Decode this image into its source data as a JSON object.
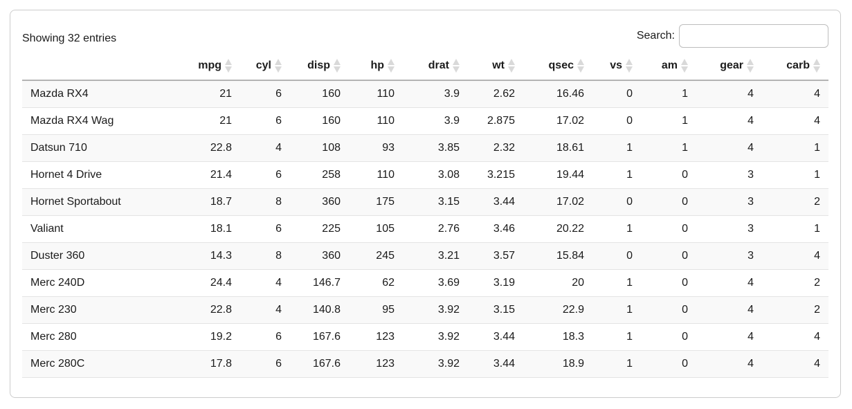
{
  "card": {
    "info_text": "Showing 32 entries",
    "search": {
      "label": "Search:",
      "value": "",
      "placeholder": ""
    }
  },
  "table": {
    "row_header_label": "",
    "columns": [
      "mpg",
      "cyl",
      "disp",
      "hp",
      "drat",
      "wt",
      "qsec",
      "vs",
      "am",
      "gear",
      "carb"
    ],
    "rows": [
      {
        "name": "Mazda RX4",
        "values": [
          "21",
          "6",
          "160",
          "110",
          "3.9",
          "2.62",
          "16.46",
          "0",
          "1",
          "4",
          "4"
        ]
      },
      {
        "name": "Mazda RX4 Wag",
        "values": [
          "21",
          "6",
          "160",
          "110",
          "3.9",
          "2.875",
          "17.02",
          "0",
          "1",
          "4",
          "4"
        ]
      },
      {
        "name": "Datsun 710",
        "values": [
          "22.8",
          "4",
          "108",
          "93",
          "3.85",
          "2.32",
          "18.61",
          "1",
          "1",
          "4",
          "1"
        ]
      },
      {
        "name": "Hornet 4 Drive",
        "values": [
          "21.4",
          "6",
          "258",
          "110",
          "3.08",
          "3.215",
          "19.44",
          "1",
          "0",
          "3",
          "1"
        ]
      },
      {
        "name": "Hornet Sportabout",
        "values": [
          "18.7",
          "8",
          "360",
          "175",
          "3.15",
          "3.44",
          "17.02",
          "0",
          "0",
          "3",
          "2"
        ]
      },
      {
        "name": "Valiant",
        "values": [
          "18.1",
          "6",
          "225",
          "105",
          "2.76",
          "3.46",
          "20.22",
          "1",
          "0",
          "3",
          "1"
        ]
      },
      {
        "name": "Duster 360",
        "values": [
          "14.3",
          "8",
          "360",
          "245",
          "3.21",
          "3.57",
          "15.84",
          "0",
          "0",
          "3",
          "4"
        ]
      },
      {
        "name": "Merc 240D",
        "values": [
          "24.4",
          "4",
          "146.7",
          "62",
          "3.69",
          "3.19",
          "20",
          "1",
          "0",
          "4",
          "2"
        ]
      },
      {
        "name": "Merc 230",
        "values": [
          "22.8",
          "4",
          "140.8",
          "95",
          "3.92",
          "3.15",
          "22.9",
          "1",
          "0",
          "4",
          "2"
        ]
      },
      {
        "name": "Merc 280",
        "values": [
          "19.2",
          "6",
          "167.6",
          "123",
          "3.92",
          "3.44",
          "18.3",
          "1",
          "0",
          "4",
          "4"
        ]
      },
      {
        "name": "Merc 280C",
        "values": [
          "17.8",
          "6",
          "167.6",
          "123",
          "3.92",
          "3.44",
          "18.9",
          "1",
          "0",
          "4",
          "4"
        ]
      }
    ]
  },
  "colors": {
    "card_border": "#cccccc",
    "header_underline": "#b3b3b3",
    "row_border": "#e4e4e4",
    "stripe_bg": "#f9f9f9",
    "sort_icon": "#d9d9d9",
    "text": "#1a1a1a"
  },
  "icons": {
    "sort_icon": "sort-both-diamond"
  }
}
